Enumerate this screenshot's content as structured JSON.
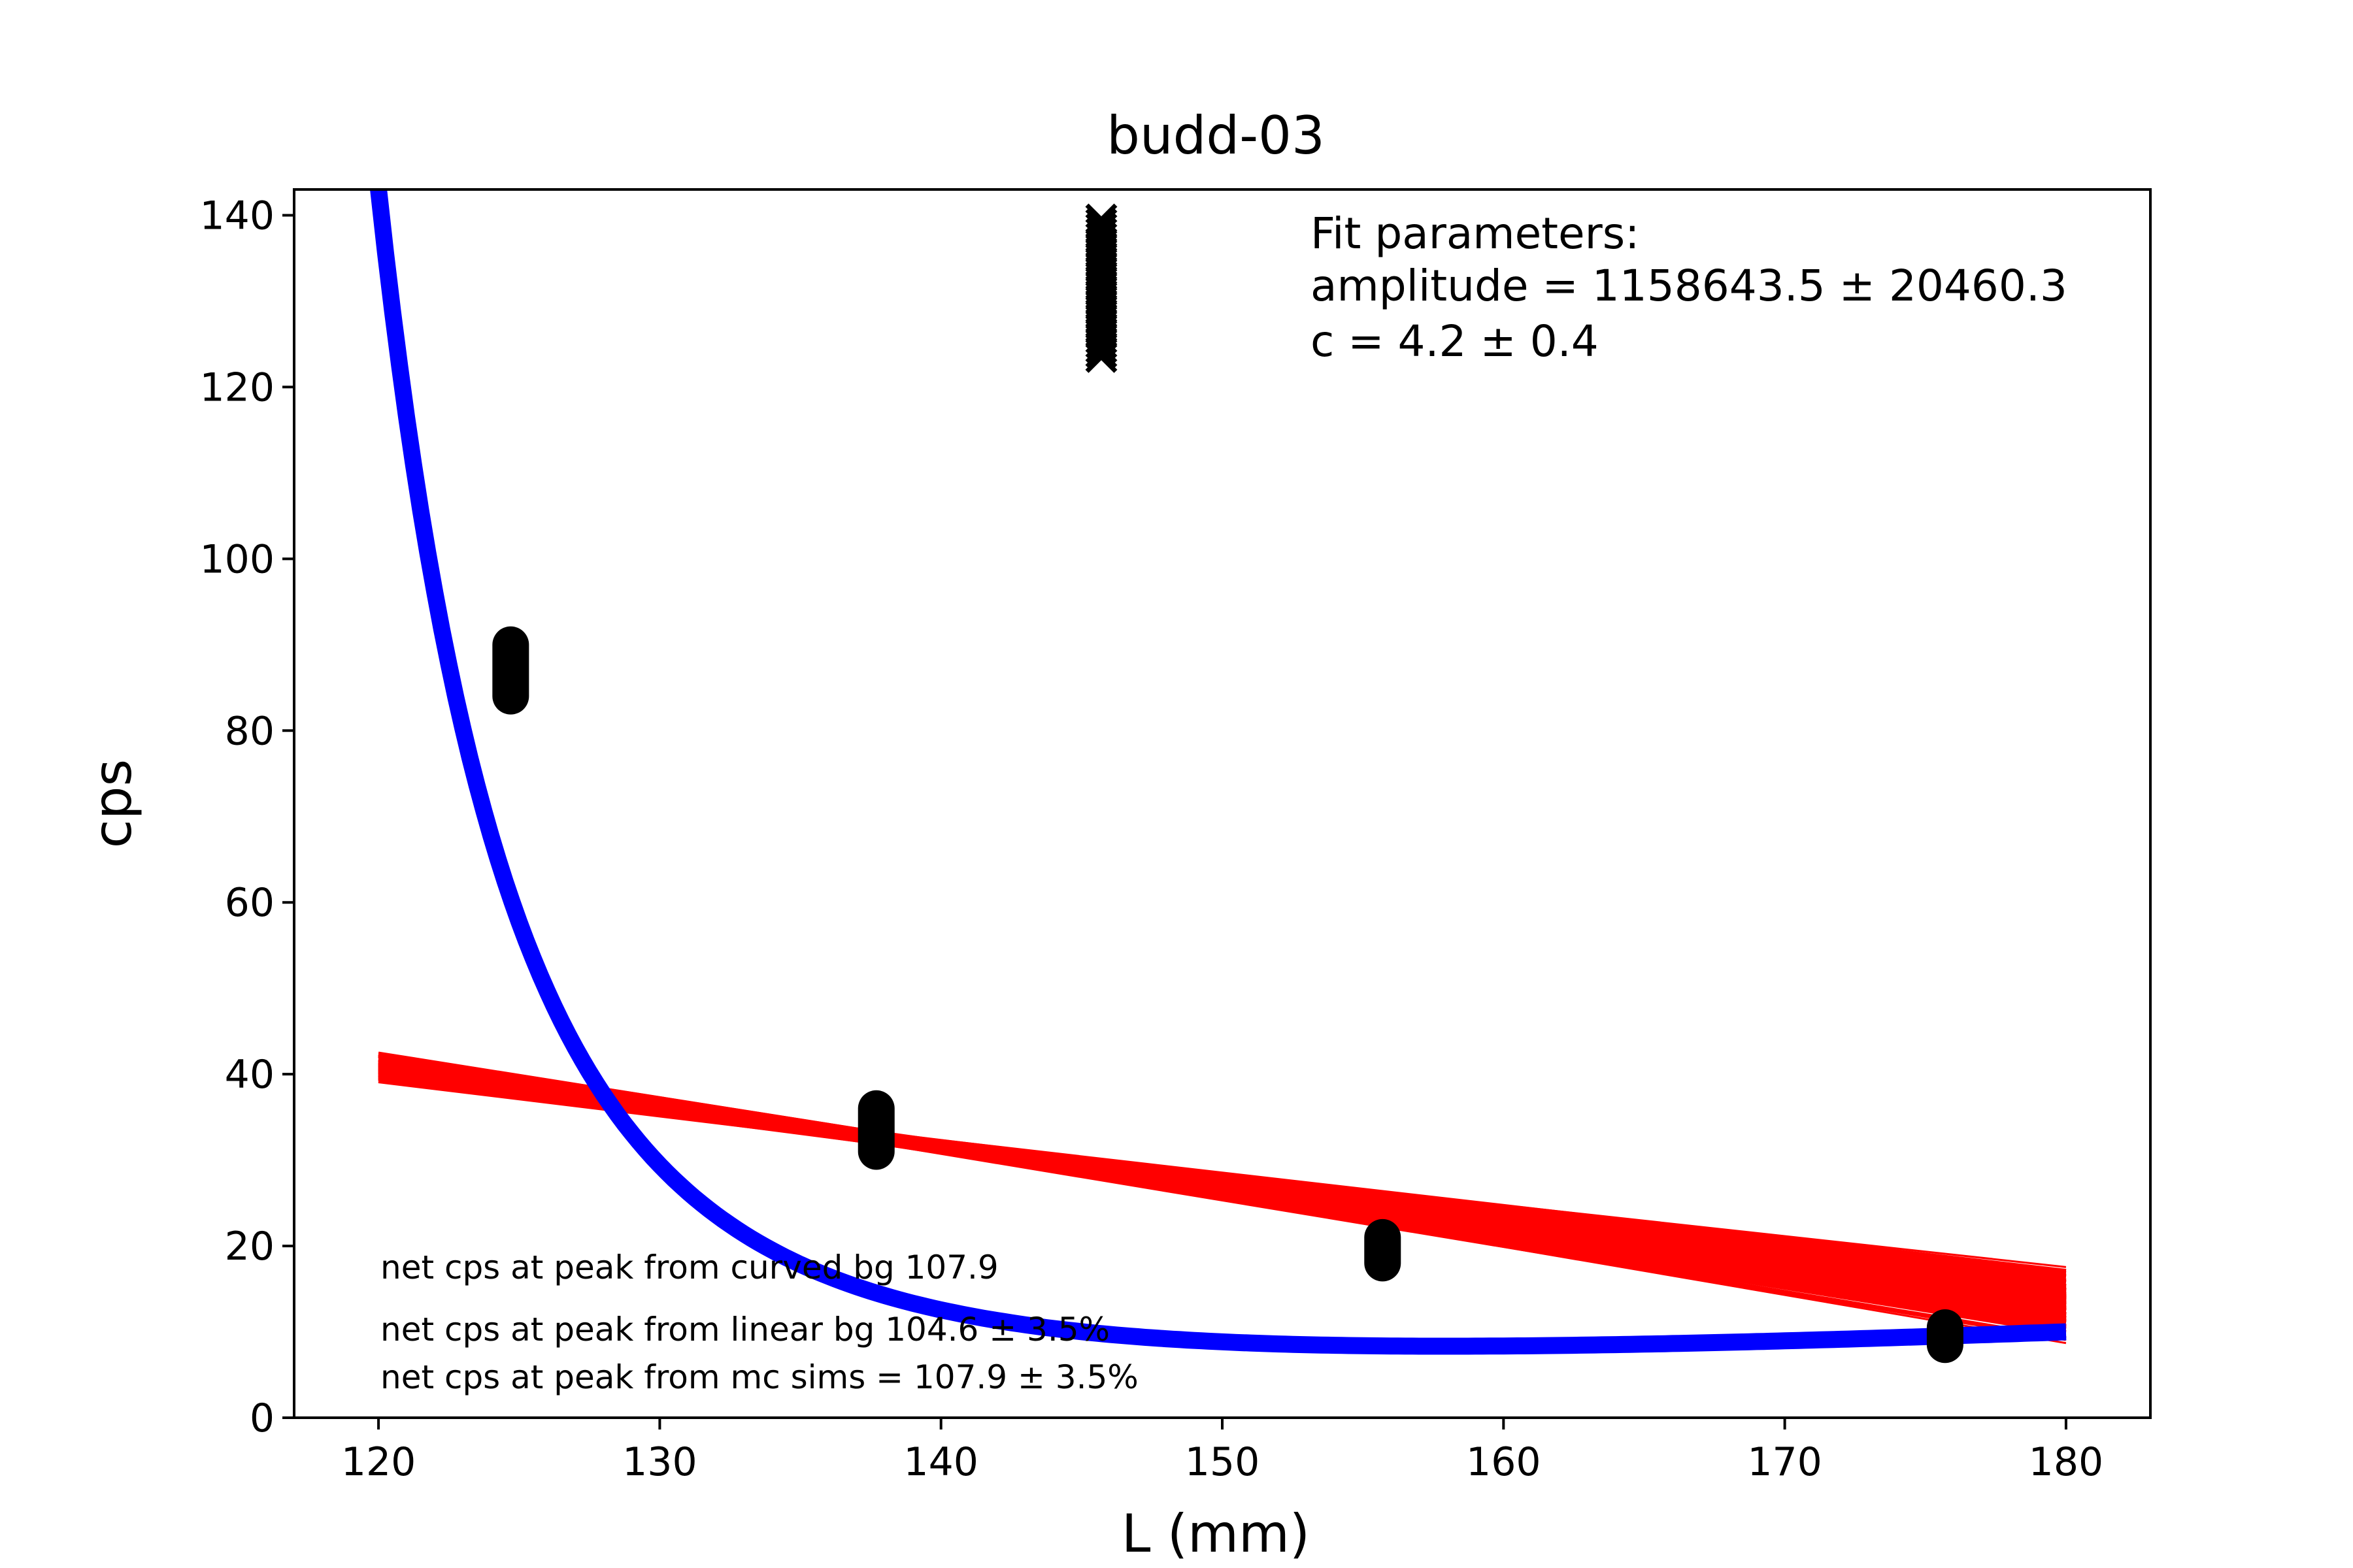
{
  "chart_data": {
    "type": "scatter",
    "title": "budd-03",
    "xlabel": "L (mm)",
    "ylabel": "cps",
    "xlim": [
      117,
      183
    ],
    "ylim": [
      0,
      143
    ],
    "xticks": [
      120,
      130,
      140,
      150,
      160,
      170,
      180
    ],
    "yticks": [
      0,
      20,
      40,
      60,
      80,
      100,
      120,
      140
    ],
    "grid": false,
    "background_points": {
      "marker": "circle",
      "color": "#000000",
      "points": [
        {
          "x": 124.7,
          "y_min": 84,
          "y_max": 90
        },
        {
          "x": 137.7,
          "y_min": 31,
          "y_max": 36
        },
        {
          "x": 155.7,
          "y_min": 18,
          "y_max": 21
        },
        {
          "x": 175.7,
          "y_min": 8.5,
          "y_max": 10.5
        }
      ]
    },
    "peak_points": {
      "marker": "x",
      "color": "#000000",
      "x": 145.7,
      "y_min": 123.5,
      "y_max": 139.5
    },
    "curved_fit": {
      "color": "#0000ff",
      "model": "amplitude / (x - ...) ^ c",
      "x_range": [
        120,
        180
      ],
      "y_start": 143,
      "y_end": 10
    },
    "linear_fits": {
      "color": "#ff0000",
      "x_range": [
        120,
        180
      ],
      "pivot_x": 139,
      "pivot_y": 32,
      "slope_min": -0.56,
      "slope_max": -0.36,
      "count": 80
    },
    "annotations": {
      "fit_header": "Fit parameters:",
      "amplitude": "amplitude = 1158643.5 ± 20460.3",
      "c": "c = 4.2 ± 0.4",
      "net_curved": "net cps at peak from curved bg 107.9",
      "net_linear": "net cps at peak from linear bg 104.6 ± 3.5%",
      "net_mc": "net cps at peak from mc sims = 107.9 ± 3.5%"
    }
  }
}
